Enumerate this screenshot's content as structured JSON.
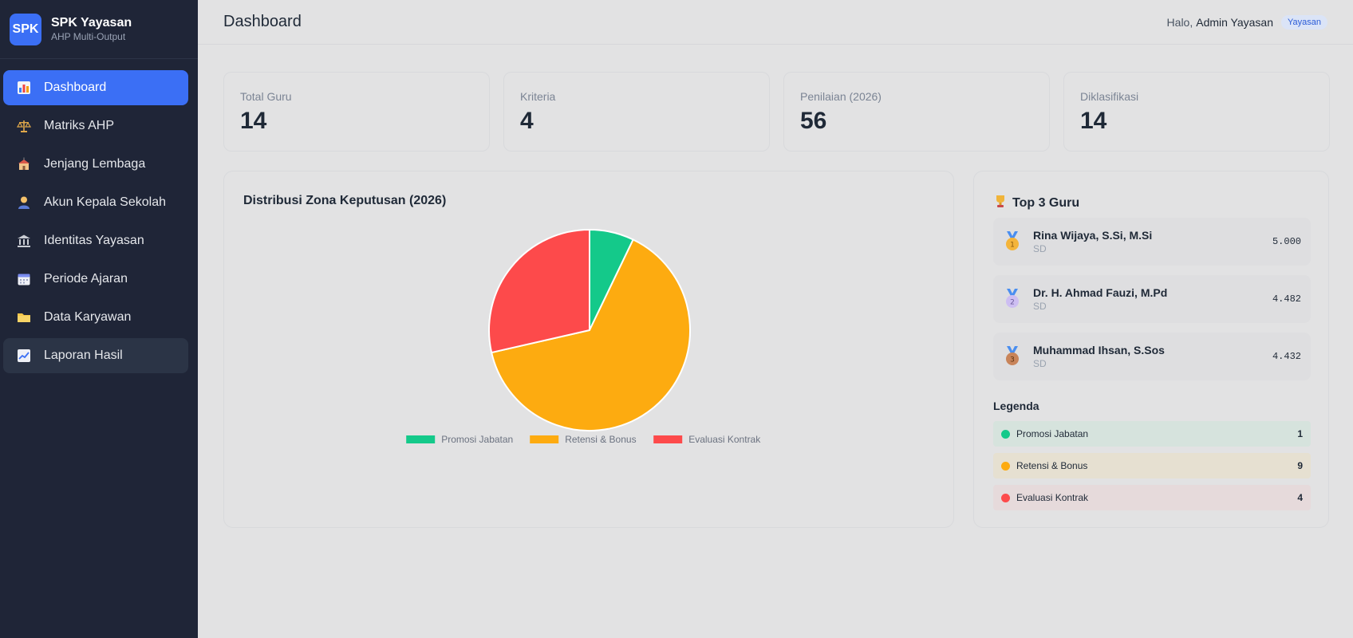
{
  "brand": {
    "logo": "SPK",
    "title": "SPK Yayasan",
    "subtitle": "AHP Multi-Output"
  },
  "sidebar": {
    "items": [
      {
        "label": "Dashboard",
        "icon": "bar-chart-icon",
        "active": true
      },
      {
        "label": "Matriks AHP",
        "icon": "scale-icon"
      },
      {
        "label": "Jenjang Lembaga",
        "icon": "school-icon"
      },
      {
        "label": "Akun Kepala Sekolah",
        "icon": "user-icon"
      },
      {
        "label": "Identitas Yayasan",
        "icon": "bank-icon"
      },
      {
        "label": "Periode Ajaran",
        "icon": "calendar-icon"
      },
      {
        "label": "Data Karyawan",
        "icon": "folder-icon"
      },
      {
        "label": "Laporan Hasil",
        "icon": "trend-chart-icon",
        "hover": true
      }
    ]
  },
  "header": {
    "title": "Dashboard",
    "greeting": "Halo,",
    "user": "Admin Yayasan",
    "role": "Yayasan"
  },
  "stats": [
    {
      "label": "Total Guru",
      "value": "14"
    },
    {
      "label": "Kriteria",
      "value": "4"
    },
    {
      "label": "Penilaian (2026)",
      "value": "56"
    },
    {
      "label": "Diklasifikasi",
      "value": "14"
    }
  ],
  "chart_card": {
    "title": "Distribusi Zona Keputusan (2026)"
  },
  "chart_data": {
    "type": "pie",
    "categories": [
      "Promosi Jabatan",
      "Retensi & Bonus",
      "Evaluasi Kontrak"
    ],
    "values": [
      1,
      9,
      4
    ],
    "colors": [
      "#14c98a",
      "#fdab10",
      "#fd4a4b"
    ],
    "legend": "bottom"
  },
  "top3": {
    "title": "Top 3 Guru",
    "items": [
      {
        "rank": "1",
        "name": "Rina Wijaya, S.Si, M.Si",
        "sub": "SD",
        "score": "5.000",
        "medal_color": "#f4b43a"
      },
      {
        "rank": "2",
        "name": "Dr. H. Ahmad Fauzi, M.Pd",
        "sub": "SD",
        "score": "4.482",
        "medal_color": "#c9b8f0"
      },
      {
        "rank": "3",
        "name": "Muhammad Ihsan, S.Sos",
        "sub": "SD",
        "score": "4.432",
        "medal_color": "#c8845a"
      }
    ]
  },
  "legend": {
    "title": "Legenda",
    "items": [
      {
        "label": "Promosi Jabatan",
        "count": "1",
        "color": "#14c98a",
        "bg": "#d6e3dd"
      },
      {
        "label": "Retensi & Bonus",
        "count": "9",
        "color": "#fdab10",
        "bg": "#e6e0d1"
      },
      {
        "label": "Evaluasi Kontrak",
        "count": "4",
        "color": "#fd4a4b",
        "bg": "#e6dadb"
      }
    ]
  }
}
